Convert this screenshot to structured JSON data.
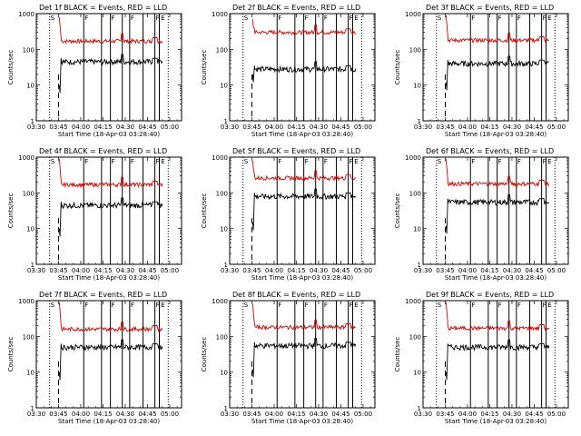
{
  "colors": {
    "events": "#000000",
    "lld": "#e00000",
    "axis": "#000000"
  },
  "common": {
    "y_label": "Counts/sec",
    "x_label": "Start Time (18-Apr-03 03:28:40)",
    "x_ticks": [
      "03:30",
      "03:45",
      "04:00",
      "04:15",
      "04:30",
      "04:45",
      "05:00"
    ],
    "y_ticks": [
      "1",
      "10",
      "100",
      "1000"
    ],
    "marker_S": "S",
    "marker_F": "F",
    "marker_E": "E"
  },
  "panels": [
    {
      "title": "Det 1f BLACK = Events, RED = LLD"
    },
    {
      "title": "Det 2f BLACK = Events, RED = LLD"
    },
    {
      "title": "Det 3f BLACK = Events, RED = LLD"
    },
    {
      "title": "Det 4f BLACK = Events, RED = LLD"
    },
    {
      "title": "Det 5f BLACK = Events, RED = LLD"
    },
    {
      "title": "Det 6f BLACK = Events, RED = LLD"
    },
    {
      "title": "Det 7f BLACK = Events, RED = LLD"
    },
    {
      "title": "Det 8f BLACK = Events, RED = LLD"
    },
    {
      "title": "Det 9f BLACK = Events, RED = LLD"
    }
  ],
  "chart_data": {
    "type": "line",
    "y_scale": "log",
    "ylim": [
      1,
      1000
    ],
    "x_unit": "minutes after 03:30",
    "xlim": [
      0,
      98
    ],
    "markers": {
      "S_line_dotted": 9,
      "dashed_line": 15,
      "F_lines_solid": [
        32,
        44,
        50,
        58,
        63,
        72,
        80,
        83
      ],
      "E_line_dotted": 89
    },
    "series_description": "Black = Events, Red = LLD",
    "panels": [
      {
        "events_level": 45,
        "lld_level": 170,
        "events_start": 10,
        "lld_start": 800
      },
      {
        "events_level": 28,
        "lld_level": 300,
        "events_start": 20,
        "lld_start": 700
      },
      {
        "events_level": 40,
        "lld_level": 180,
        "events_start": 12,
        "lld_start": 900
      },
      {
        "events_level": 45,
        "lld_level": 170,
        "events_start": 10,
        "lld_start": 900
      },
      {
        "events_level": 80,
        "lld_level": 260,
        "events_start": 15,
        "lld_start": 800
      },
      {
        "events_level": 55,
        "lld_level": 180,
        "events_start": 12,
        "lld_start": 900
      },
      {
        "events_level": 50,
        "lld_level": 160,
        "events_start": 10,
        "lld_start": 900
      },
      {
        "events_level": 55,
        "lld_level": 180,
        "events_start": 12,
        "lld_start": 800
      },
      {
        "events_level": 50,
        "lld_level": 170,
        "events_start": 10,
        "lld_start": 900
      }
    ]
  }
}
